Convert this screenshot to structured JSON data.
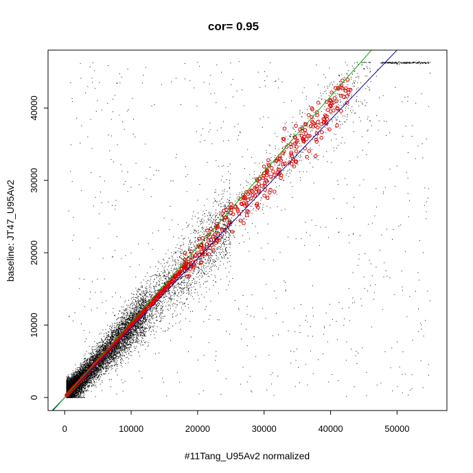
{
  "chart_data": {
    "type": "scatter",
    "title": "cor= 0.95",
    "xlabel": "#11Tang_U95Av2 normalized",
    "ylabel": "baseline: JT47_U95Av2",
    "xlim": [
      -2500,
      57500
    ],
    "ylim": [
      -1800,
      48000
    ],
    "x_ticks": [
      0,
      10000,
      20000,
      30000,
      40000,
      50000
    ],
    "x_tick_labels": [
      "0",
      "10000",
      "20000",
      "30000",
      "40000",
      "50000"
    ],
    "y_ticks": [
      0,
      10000,
      20000,
      30000,
      40000
    ],
    "y_tick_labels": [
      "0",
      "10000",
      "20000",
      "30000",
      "40000"
    ],
    "grid": false,
    "legend": "none",
    "colors": {
      "points": "#000000",
      "highlighted": "#dd0000",
      "blue_line": "#000099",
      "green_line": "#00aa00"
    },
    "lines": [
      {
        "color": "blue",
        "intercept": 0,
        "slope": 0.96
      },
      {
        "color": "green",
        "intercept": 0,
        "slope": 1.04
      }
    ],
    "series": [
      {
        "kind": "dense_points",
        "color": "black",
        "representative_points": [
          [
            500,
            800
          ],
          [
            1500,
            1200
          ],
          [
            2500,
            2100
          ],
          [
            3500,
            3400
          ],
          [
            4200,
            4800
          ],
          [
            5000,
            5100
          ],
          [
            6000,
            5700
          ],
          [
            7000,
            7300
          ],
          [
            8500,
            8200
          ],
          [
            10000,
            9700
          ],
          [
            12000,
            12500
          ],
          [
            14000,
            13300
          ],
          [
            16000,
            15800
          ],
          [
            18000,
            17200
          ],
          [
            20000,
            19300
          ],
          [
            22000,
            21500
          ],
          [
            25000,
            24200
          ],
          [
            28000,
            28700
          ],
          [
            30000,
            29500
          ],
          [
            33000,
            33800
          ],
          [
            36000,
            35500
          ],
          [
            40000,
            40500
          ],
          [
            44000,
            44800
          ],
          [
            48000,
            46300
          ],
          [
            52000,
            46300
          ],
          [
            55000,
            46300
          ],
          [
            20000,
            46300
          ],
          [
            41000,
            8000
          ],
          [
            54000,
            8500
          ],
          [
            18500,
            30800
          ]
        ]
      },
      {
        "kind": "highlighted_points",
        "color": "red",
        "representative_points": [
          [
            300,
            300
          ],
          [
            1000,
            1000
          ],
          [
            2000,
            2000
          ],
          [
            3000,
            3000
          ],
          [
            4000,
            4000
          ],
          [
            5000,
            5000
          ],
          [
            6000,
            6000
          ],
          [
            7000,
            7000
          ],
          [
            8000,
            8000
          ],
          [
            9000,
            9000
          ],
          [
            10000,
            10000
          ],
          [
            11000,
            11000
          ],
          [
            12000,
            12000
          ],
          [
            13000,
            13000
          ],
          [
            14000,
            14000
          ],
          [
            15000,
            15000
          ],
          [
            16000,
            16000
          ],
          [
            17000,
            17000
          ],
          [
            18000,
            18000
          ],
          [
            19000,
            19000
          ],
          [
            20000,
            20000
          ],
          [
            22000,
            21800
          ],
          [
            23000,
            23500
          ],
          [
            24000,
            24500
          ],
          [
            25000,
            25500
          ],
          [
            26000,
            26000
          ],
          [
            27000,
            27500
          ],
          [
            28000,
            27500
          ],
          [
            29000,
            30000
          ],
          [
            30000,
            31000
          ],
          [
            31000,
            30500
          ],
          [
            32000,
            33000
          ],
          [
            33000,
            34000
          ],
          [
            34000,
            35000
          ],
          [
            35000,
            35500
          ],
          [
            36000,
            36000
          ],
          [
            37000,
            37500
          ],
          [
            38000,
            39000
          ],
          [
            39000,
            38000
          ],
          [
            40000,
            41000
          ],
          [
            41000,
            40000
          ],
          [
            42000,
            41500
          ],
          [
            43000,
            42500
          ]
        ]
      }
    ]
  }
}
